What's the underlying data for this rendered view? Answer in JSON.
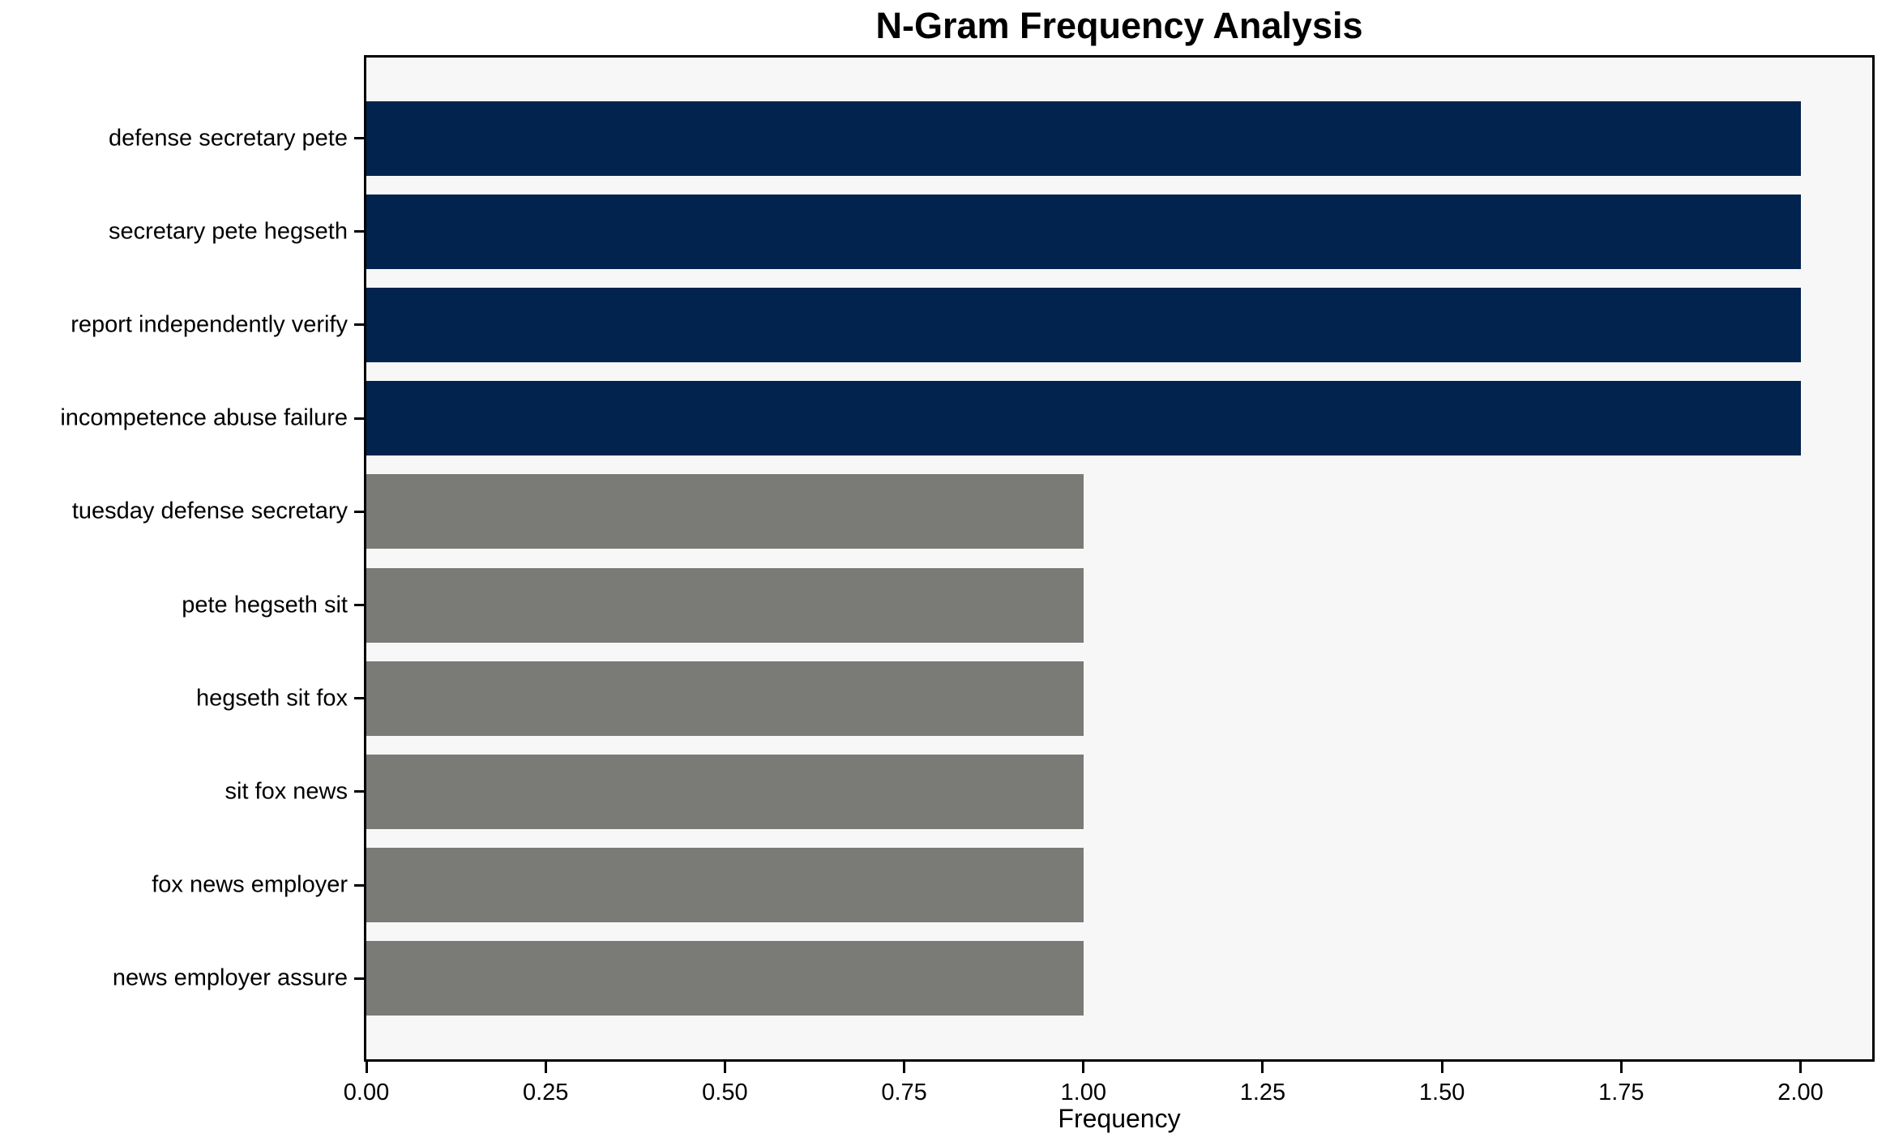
{
  "chart_data": {
    "type": "bar",
    "orientation": "horizontal",
    "title": "N-Gram Frequency Analysis",
    "xlabel": "Frequency",
    "ylabel": "",
    "categories": [
      "defense secretary pete",
      "secretary pete hegseth",
      "report independently verify",
      "incompetence abuse failure",
      "tuesday defense secretary",
      "pete hegseth sit",
      "hegseth sit fox",
      "sit fox news",
      "fox news employer",
      "news employer assure"
    ],
    "values": [
      2,
      2,
      2,
      2,
      1,
      1,
      1,
      1,
      1,
      1
    ],
    "bar_colors": [
      "#02234d",
      "#02234d",
      "#02234d",
      "#02234d",
      "#7a7a77",
      "#7a7a77",
      "#7a7a77",
      "#7a7a77",
      "#7a7a77",
      "#7a7a77"
    ],
    "xlim": [
      0,
      2.1
    ],
    "xticks": [
      "0.00",
      "0.25",
      "0.50",
      "0.75",
      "1.00",
      "1.25",
      "1.50",
      "1.75",
      "2.00"
    ],
    "xtick_values": [
      0,
      0.25,
      0.5,
      0.75,
      1.0,
      1.25,
      1.5,
      1.75,
      2.0
    ],
    "grid": false,
    "legend_visible": false,
    "colors": {
      "bar_high": "#02234d",
      "bar_low": "#7a7a77",
      "plot_background": "#f7f7f7",
      "figure_background": "#ffffff",
      "axis": "#000000",
      "text": "#000000"
    }
  }
}
